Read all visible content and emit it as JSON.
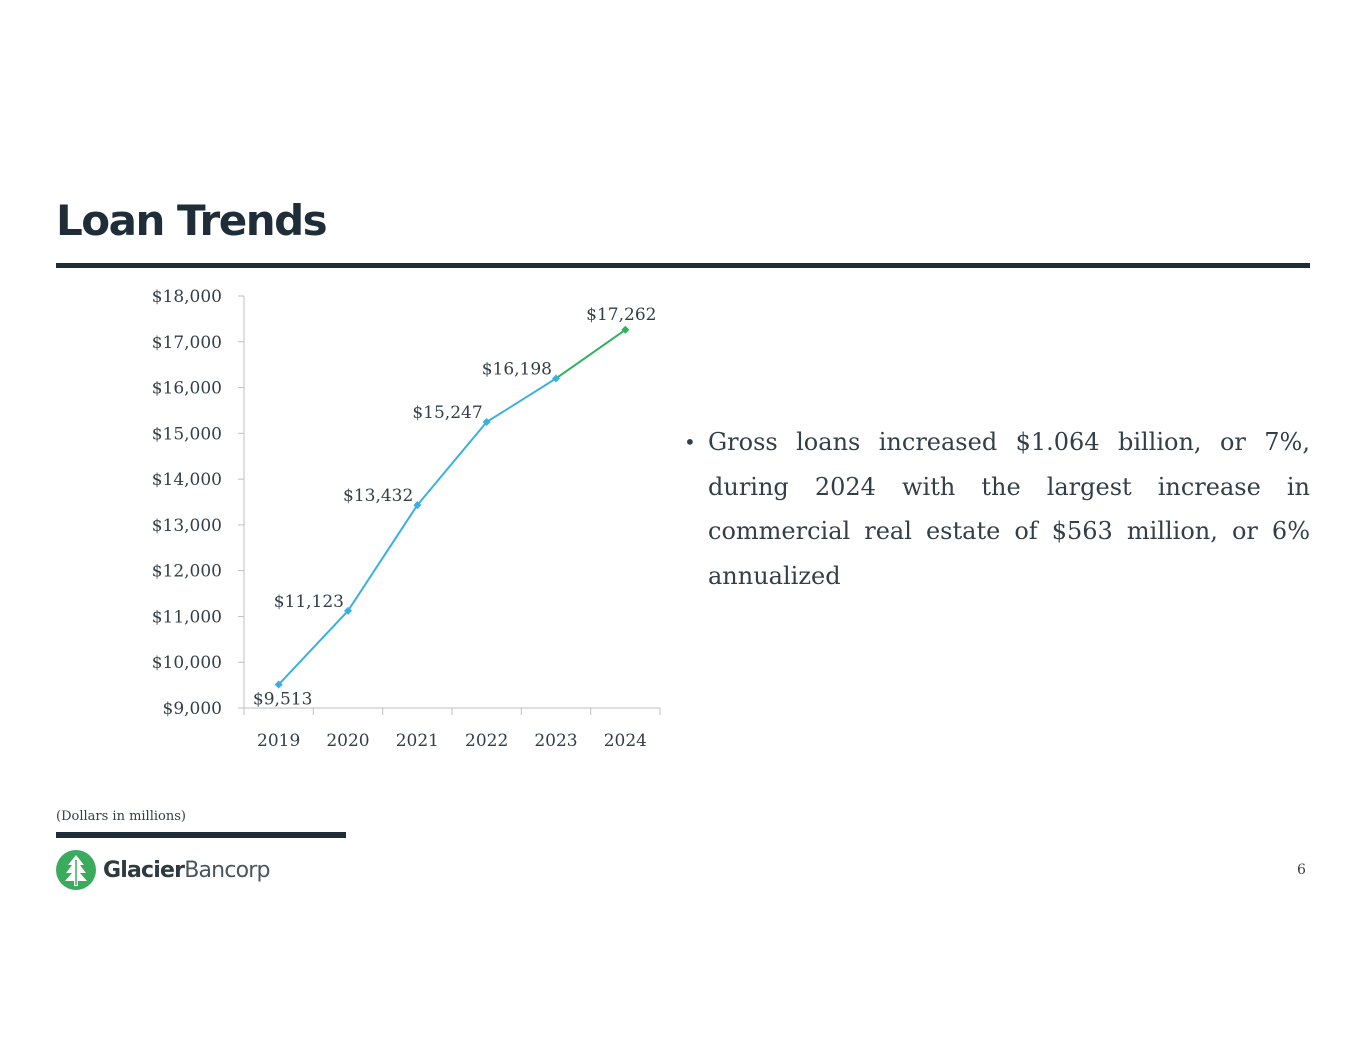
{
  "slide": {
    "title": "Loan Trends",
    "bullet": "Gross loans increased $1.064 billion, or 7%, during 2024 with the largest increase in commercial real estate of $563 million, or 6% annualized",
    "footnote": "(Dollars in millions)",
    "page_number": "6"
  },
  "logo": {
    "name_bold": "Glacier",
    "name_light": "Bancorp",
    "icon": "glacier-tree-icon",
    "color": "#3aaa5c"
  },
  "chart_data": {
    "type": "line",
    "categories": [
      "2019",
      "2020",
      "2021",
      "2022",
      "2023",
      "2024"
    ],
    "values": [
      9513,
      11123,
      13432,
      15247,
      16198,
      17262
    ],
    "data_labels": [
      "$9,513",
      "$11,123",
      "$13,432",
      "$15,247",
      "$16,198",
      "$17,262"
    ],
    "ylim": [
      9000,
      18000
    ],
    "yticks": [
      9000,
      10000,
      11000,
      12000,
      13000,
      14000,
      15000,
      16000,
      17000,
      18000
    ],
    "ytick_labels": [
      "$9,000",
      "$10,000",
      "$11,000",
      "$12,000",
      "$13,000",
      "$14,000",
      "$15,000",
      "$16,000",
      "$17,000",
      "$18,000"
    ],
    "grid": false,
    "legend": "none",
    "line_color": "#3ab0e2",
    "highlight_color": "#2fb35a",
    "highlight_segment_index": 4
  }
}
